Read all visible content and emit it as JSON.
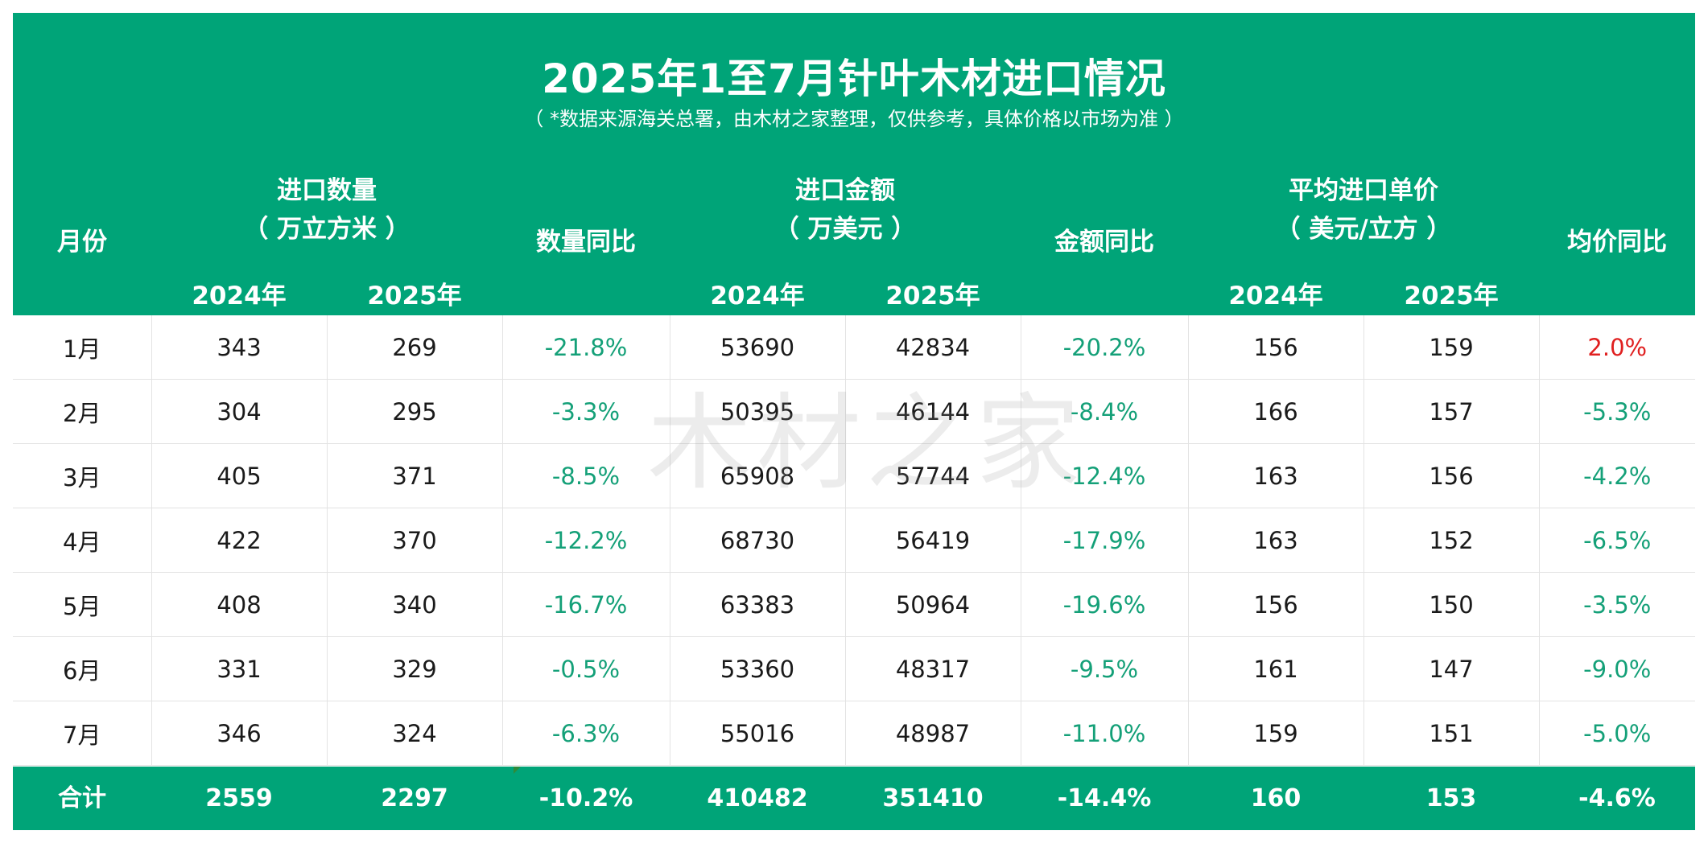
{
  "title": "2025年1至7月针叶木材进口情况",
  "subtitle": "（ *数据来源海关总署，由木材之家整理，仅供参考，具体价格以市场为准 ）",
  "watermark": "木材之家",
  "colors": {
    "header_bg": "#00a478",
    "negative": "#14a078",
    "positive": "#e02020"
  },
  "headers": {
    "month": "月份",
    "qty": {
      "line1": "进口数量",
      "line2": "（ 万立方米 ）"
    },
    "qty_yoy": "数量同比",
    "amount": {
      "line1": "进口金额",
      "line2": "（ 万美元 ）"
    },
    "amount_yoy": "金额同比",
    "price": {
      "line1": "平均进口单价",
      "line2": "（ 美元/立方 ）"
    },
    "price_yoy": "均价同比",
    "year_2024": "2024年",
    "year_2025": "2025年"
  },
  "rows": [
    {
      "month": "1月",
      "qty24": "343",
      "qty25": "269",
      "qty_yoy": "-21.8%",
      "amt24": "53690",
      "amt25": "42834",
      "amt_yoy": "-20.2%",
      "price24": "156",
      "price25": "159",
      "price_yoy": "2.0%"
    },
    {
      "month": "2月",
      "qty24": "304",
      "qty25": "295",
      "qty_yoy": "-3.3%",
      "amt24": "50395",
      "amt25": "46144",
      "amt_yoy": "-8.4%",
      "price24": "166",
      "price25": "157",
      "price_yoy": "-5.3%"
    },
    {
      "month": "3月",
      "qty24": "405",
      "qty25": "371",
      "qty_yoy": "-8.5%",
      "amt24": "65908",
      "amt25": "57744",
      "amt_yoy": "-12.4%",
      "price24": "163",
      "price25": "156",
      "price_yoy": "-4.2%"
    },
    {
      "month": "4月",
      "qty24": "422",
      "qty25": "370",
      "qty_yoy": "-12.2%",
      "amt24": "68730",
      "amt25": "56419",
      "amt_yoy": "-17.9%",
      "price24": "163",
      "price25": "152",
      "price_yoy": "-6.5%"
    },
    {
      "month": "5月",
      "qty24": "408",
      "qty25": "340",
      "qty_yoy": "-16.7%",
      "amt24": "63383",
      "amt25": "50964",
      "amt_yoy": "-19.6%",
      "price24": "156",
      "price25": "150",
      "price_yoy": "-3.5%"
    },
    {
      "month": "6月",
      "qty24": "331",
      "qty25": "329",
      "qty_yoy": "-0.5%",
      "amt24": "53360",
      "amt25": "48317",
      "amt_yoy": "-9.5%",
      "price24": "161",
      "price25": "147",
      "price_yoy": "-9.0%"
    },
    {
      "month": "7月",
      "qty24": "346",
      "qty25": "324",
      "qty_yoy": "-6.3%",
      "amt24": "55016",
      "amt25": "48987",
      "amt_yoy": "-11.0%",
      "price24": "159",
      "price25": "151",
      "price_yoy": "-5.0%"
    }
  ],
  "total": {
    "month": "合计",
    "qty24": "2559",
    "qty25": "2297",
    "qty_yoy": "-10.2%",
    "amt24": "410482",
    "amt25": "351410",
    "amt_yoy": "-14.4%",
    "price24": "160",
    "price25": "153",
    "price_yoy": "-4.6%"
  }
}
